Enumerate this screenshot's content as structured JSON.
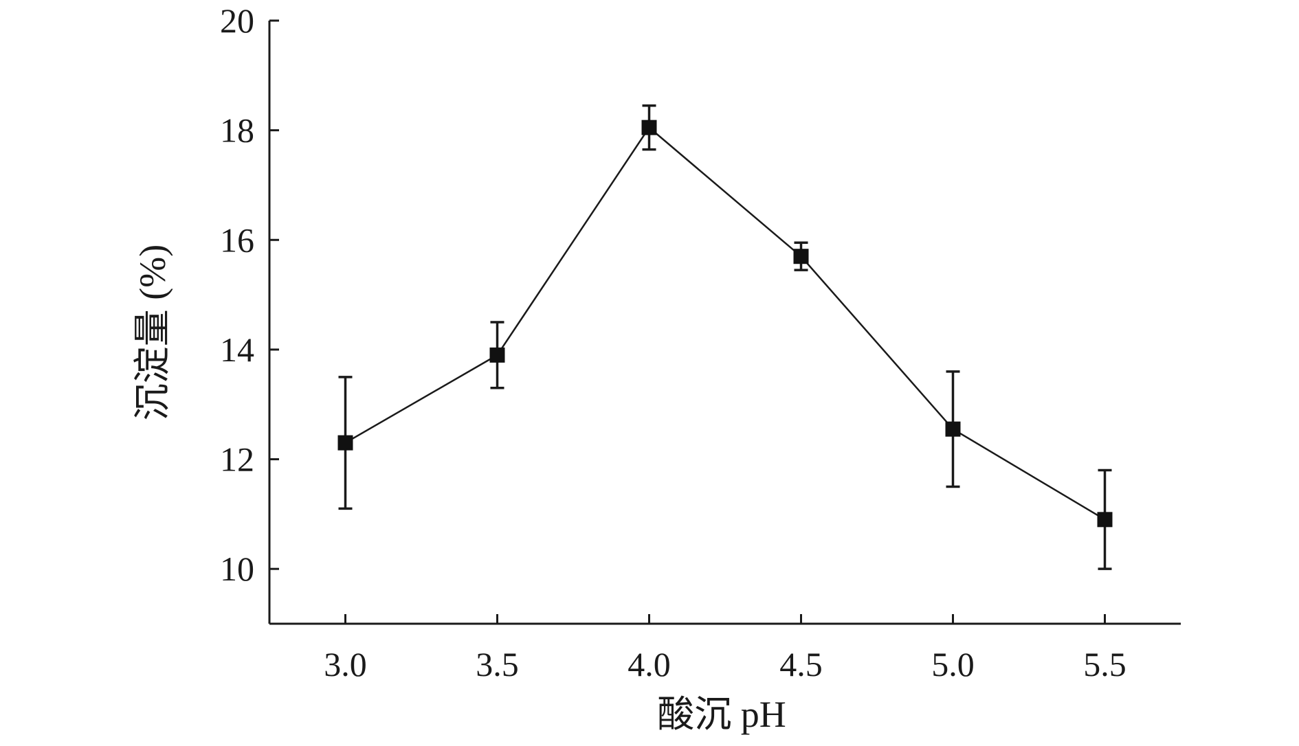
{
  "chart_data": {
    "type": "line",
    "xlabel": "酸沉 pH",
    "ylabel": "沉淀量 (%)",
    "x": [
      3.0,
      3.5,
      4.0,
      4.5,
      5.0,
      5.5
    ],
    "x_tick_labels": [
      "3.0",
      "3.5",
      "4.0",
      "4.5",
      "5.0",
      "5.5"
    ],
    "xlim": [
      2.75,
      5.75
    ],
    "ylim": [
      9,
      20
    ],
    "y_ticks": [
      10,
      12,
      14,
      16,
      18,
      20
    ],
    "y_tick_labels": [
      "10",
      "12",
      "14",
      "16",
      "18",
      "20"
    ],
    "grid": false,
    "series": [
      {
        "values": [
          12.3,
          13.9,
          18.05,
          15.7,
          12.55,
          10.9
        ],
        "error": [
          1.2,
          0.6,
          0.4,
          0.25,
          1.05,
          0.9
        ],
        "marker": "square",
        "color": "#111111"
      }
    ]
  }
}
